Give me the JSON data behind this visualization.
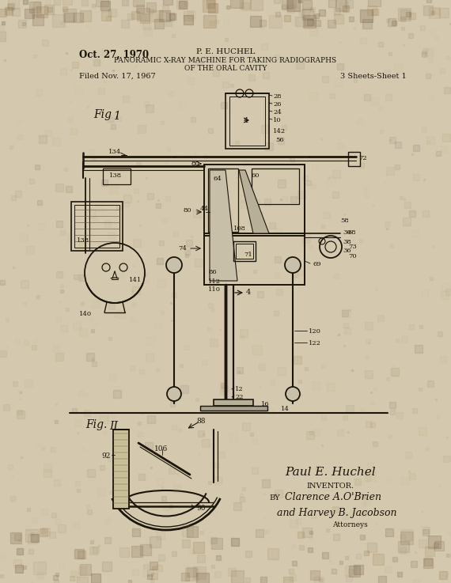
{
  "bg_color_top": "#d9cdb5",
  "bg_color": "#d4c9af",
  "title_date": "Oct. 27, 1970",
  "title_inventor": "P. E. HUCHEL",
  "title_line1": "PANORAMIC X-RAY MACHINE FOR TAKING RADIOGRAPHS",
  "title_line2": "OF THE ORAL CAVITY",
  "filed_text": "Filed Nov. 17, 1967",
  "sheets_text": "3 Sheets-Sheet 1",
  "fig1_label": "Fig .1",
  "fig2_label": "Fig. II",
  "inventor_line": "Paul E. Huchel",
  "inventor_title": "INVENTOR.",
  "attorney_by": "BY",
  "attorney_sig1": "Clarence A.O'Brien",
  "attorney_sig2": "and Harvey B. Jacobson",
  "attorney_title": "Attorneys",
  "ink_color": "#1c150a",
  "line_color": "#1c150a"
}
